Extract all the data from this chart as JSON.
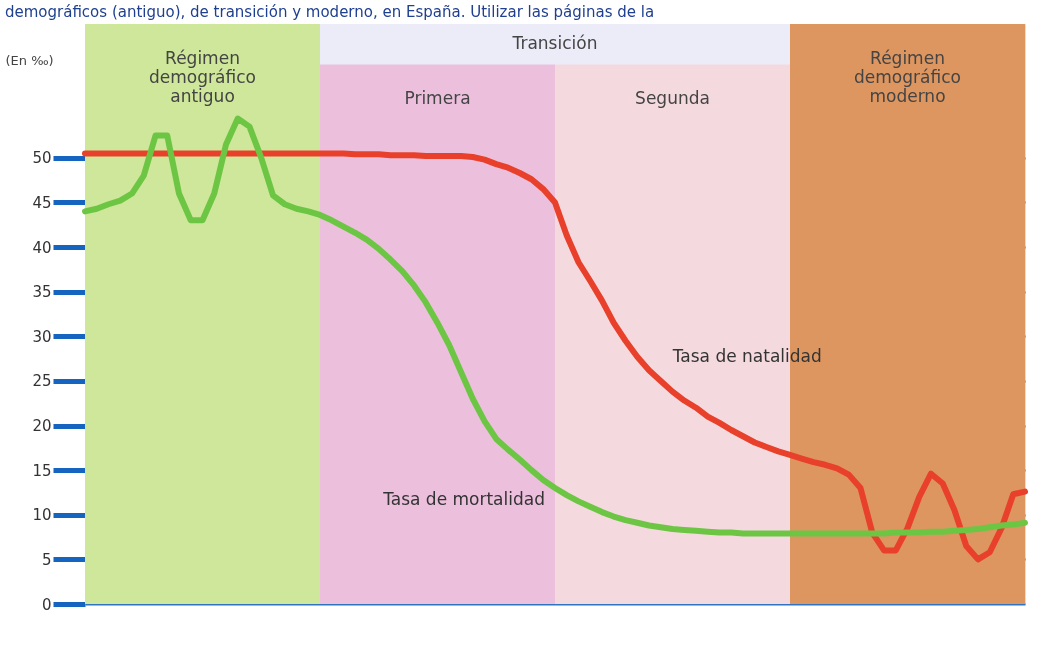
{
  "chart_data": {
    "type": "line",
    "title": "demográficos (antiguo), de transición y moderno, en España. Utilizar las páginas de la",
    "ylabel": "(En ‰)",
    "categories": [
      null,
      null,
      null,
      null,
      null,
      null,
      null,
      null,
      null,
      null,
      null,
      null,
      null,
      null,
      null,
      null,
      null,
      null,
      null,
      null,
      null,
      null,
      null,
      null,
      null,
      null,
      null,
      null,
      null,
      null,
      null,
      null,
      null,
      null,
      null,
      null,
      null,
      null,
      null,
      null,
      null,
      null,
      null,
      null,
      null,
      null,
      null,
      null,
      null,
      null,
      null,
      null,
      null,
      null,
      null,
      null,
      null,
      null,
      null,
      null,
      null,
      null,
      null,
      null,
      null,
      null,
      null,
      null,
      null,
      null,
      null,
      null,
      null,
      null,
      null,
      null,
      null,
      null,
      null,
      null,
      null
    ],
    "ylim": [
      0,
      65
    ],
    "yticks": [
      0,
      5,
      10,
      15,
      20,
      25,
      30,
      35,
      40,
      45,
      50
    ],
    "grid": "y",
    "tick_labels": "y",
    "line_style": "solid",
    "annotations": [
      "Transición",
      "Régimen demográfico antiguo",
      "Primera",
      "Segunda",
      "Régimen demográfico moderno"
    ],
    "series": [
      {
        "name": "Tasa de natalidad",
        "color": "#e8402a",
        "values": [
          50.5,
          50.5,
          50.5,
          50.5,
          50.5,
          50.5,
          50.5,
          50.5,
          50.5,
          50.5,
          50.5,
          50.5,
          50.5,
          50.5,
          50.5,
          50.5,
          50.5,
          50.5,
          50.5,
          50.5,
          50.5,
          50.5,
          50.5,
          50.4,
          50.4,
          50.4,
          50.3,
          50.3,
          50.3,
          50.2,
          50.2,
          50.2,
          50.2,
          50.1,
          49.8,
          49.3,
          48.9,
          48.3,
          47.6,
          46.5,
          45,
          41.3,
          38.3,
          36.2,
          34,
          31.5,
          29.5,
          27.7,
          26.2,
          25,
          23.8,
          22.8,
          22,
          21,
          20.3,
          19.5,
          18.8,
          18.1,
          17.6,
          17.1,
          16.7,
          16.3,
          15.9,
          15.6,
          15.2,
          14.5,
          13,
          8,
          6,
          6,
          8.5,
          12,
          14.6,
          13.5,
          10.5,
          6.5,
          5,
          5.8,
          8.5,
          12.3,
          12.6
        ]
      },
      {
        "name": "Tasa de mortalidad",
        "color": "#6cc644",
        "values": [
          44,
          44.3,
          44.8,
          45.2,
          46,
          48,
          52.5,
          52.5,
          46,
          43,
          43,
          46,
          51.5,
          54.4,
          53.5,
          50,
          45.8,
          44.8,
          44.3,
          44,
          43.6,
          43,
          42.3,
          41.6,
          40.8,
          39.8,
          38.6,
          37.3,
          35.7,
          33.8,
          31.5,
          29,
          26,
          23,
          20.5,
          18.5,
          17.3,
          16.2,
          15,
          13.9,
          13,
          12.2,
          11.5,
          10.9,
          10.3,
          9.8,
          9.4,
          9.1,
          8.8,
          8.6,
          8.4,
          8.3,
          8.2,
          8.1,
          8,
          8,
          7.9,
          7.9,
          7.9,
          7.9,
          7.9,
          7.9,
          7.9,
          7.9,
          7.9,
          7.9,
          7.9,
          7.9,
          7.9,
          8,
          8,
          8,
          8.1,
          8.1,
          8.2,
          8.3,
          8.4,
          8.6,
          8.8,
          8.9,
          9.1
        ]
      }
    ]
  }
}
